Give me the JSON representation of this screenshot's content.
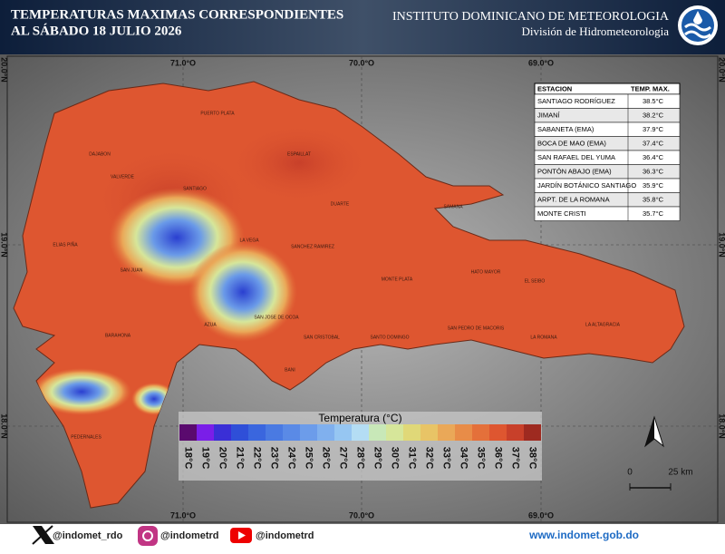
{
  "header": {
    "title_lines": [
      "TEMPERATURAS MAXIMAS CORRESPONDIENTES",
      "AL SÁBADO 18  JULIO 2026"
    ],
    "institute": "INSTITUTO DOMINICANO DE METEOROLOGIA",
    "division": "División de Hidrometeorologia"
  },
  "map": {
    "lon_labels": [
      "71.0°O",
      "70.0°O",
      "69.0°O"
    ],
    "lat_labels": [
      "20.0°N",
      "19.0°N",
      "18.0°N"
    ],
    "places": [
      "SANTIAGO",
      "LA VEGA",
      "SAN JUAN",
      "AZUA",
      "SAN JOSE DE OCOA",
      "BANI",
      "SAN CRISTOBAL",
      "SANTO DOMINGO",
      "MONTE PLATA",
      "SANCHEZ RAMIREZ",
      "HATO MAYOR",
      "EL SEIBO",
      "SAN PEDRO DE MACORIS",
      "LA ROMANA",
      "LA ALTAGRACIA",
      "SAMANA",
      "DUARTE",
      "PUERTO PLATA",
      "BARAHONA",
      "PEDERNALES",
      "ELIAS PIÑA",
      "DAJABON",
      "VALVERDE",
      "ESPAILLAT"
    ]
  },
  "table": {
    "columns": [
      "ESTACION",
      "TEMP. MAX."
    ],
    "rows": [
      [
        "SANTIAGO RODRÍGUEZ",
        "38.5°C"
      ],
      [
        "JIMANÍ",
        "38.2°C"
      ],
      [
        "SABANETA (EMA)",
        "37.9°C"
      ],
      [
        "BOCA DE MAO (EMA)",
        "37.4°C"
      ],
      [
        "SAN RAFAEL DEL YUMA",
        "36.4°C"
      ],
      [
        "PONTÓN ABAJO (EMA)",
        "36.3°C"
      ],
      [
        "JARDÍN BOTÁNICO SANTIAGO",
        "35.9°C"
      ],
      [
        "ARPT. DE LA ROMANA",
        "35.8°C"
      ],
      [
        "MONTE CRISTI",
        "35.7°C"
      ]
    ]
  },
  "legend": {
    "title": "Temperatura (°C)",
    "items": [
      {
        "label": "18°C",
        "color": "#5a0a6e"
      },
      {
        "label": "19°C",
        "color": "#7a1ee8"
      },
      {
        "label": "20°C",
        "color": "#3a2fd6"
      },
      {
        "label": "21°C",
        "color": "#2f4fd8"
      },
      {
        "label": "22°C",
        "color": "#3a66de"
      },
      {
        "label": "23°C",
        "color": "#4a7ae2"
      },
      {
        "label": "24°C",
        "color": "#5a8ae6"
      },
      {
        "label": "25°C",
        "color": "#6c9cea"
      },
      {
        "label": "26°C",
        "color": "#80b0ee"
      },
      {
        "label": "27°C",
        "color": "#96c6f2"
      },
      {
        "label": "28°C",
        "color": "#b4ddf4"
      },
      {
        "label": "29°C",
        "color": "#c8e8b8"
      },
      {
        "label": "30°C",
        "color": "#d6e69a"
      },
      {
        "label": "31°C",
        "color": "#e0d878"
      },
      {
        "label": "32°C",
        "color": "#e8c466"
      },
      {
        "label": "33°C",
        "color": "#eaa858"
      },
      {
        "label": "34°C",
        "color": "#e88c48"
      },
      {
        "label": "35°C",
        "color": "#e4703a"
      },
      {
        "label": "36°C",
        "color": "#de5630"
      },
      {
        "label": "37°C",
        "color": "#c8402a"
      },
      {
        "label": "38°C",
        "color": "#9e2a20"
      }
    ]
  },
  "scale": {
    "labels": [
      "0",
      "25 km"
    ]
  },
  "footer": {
    "social": [
      "@indomet_rdo",
      "@indometrd",
      "@indometrd"
    ],
    "website": "www.indomet.gob.do"
  }
}
